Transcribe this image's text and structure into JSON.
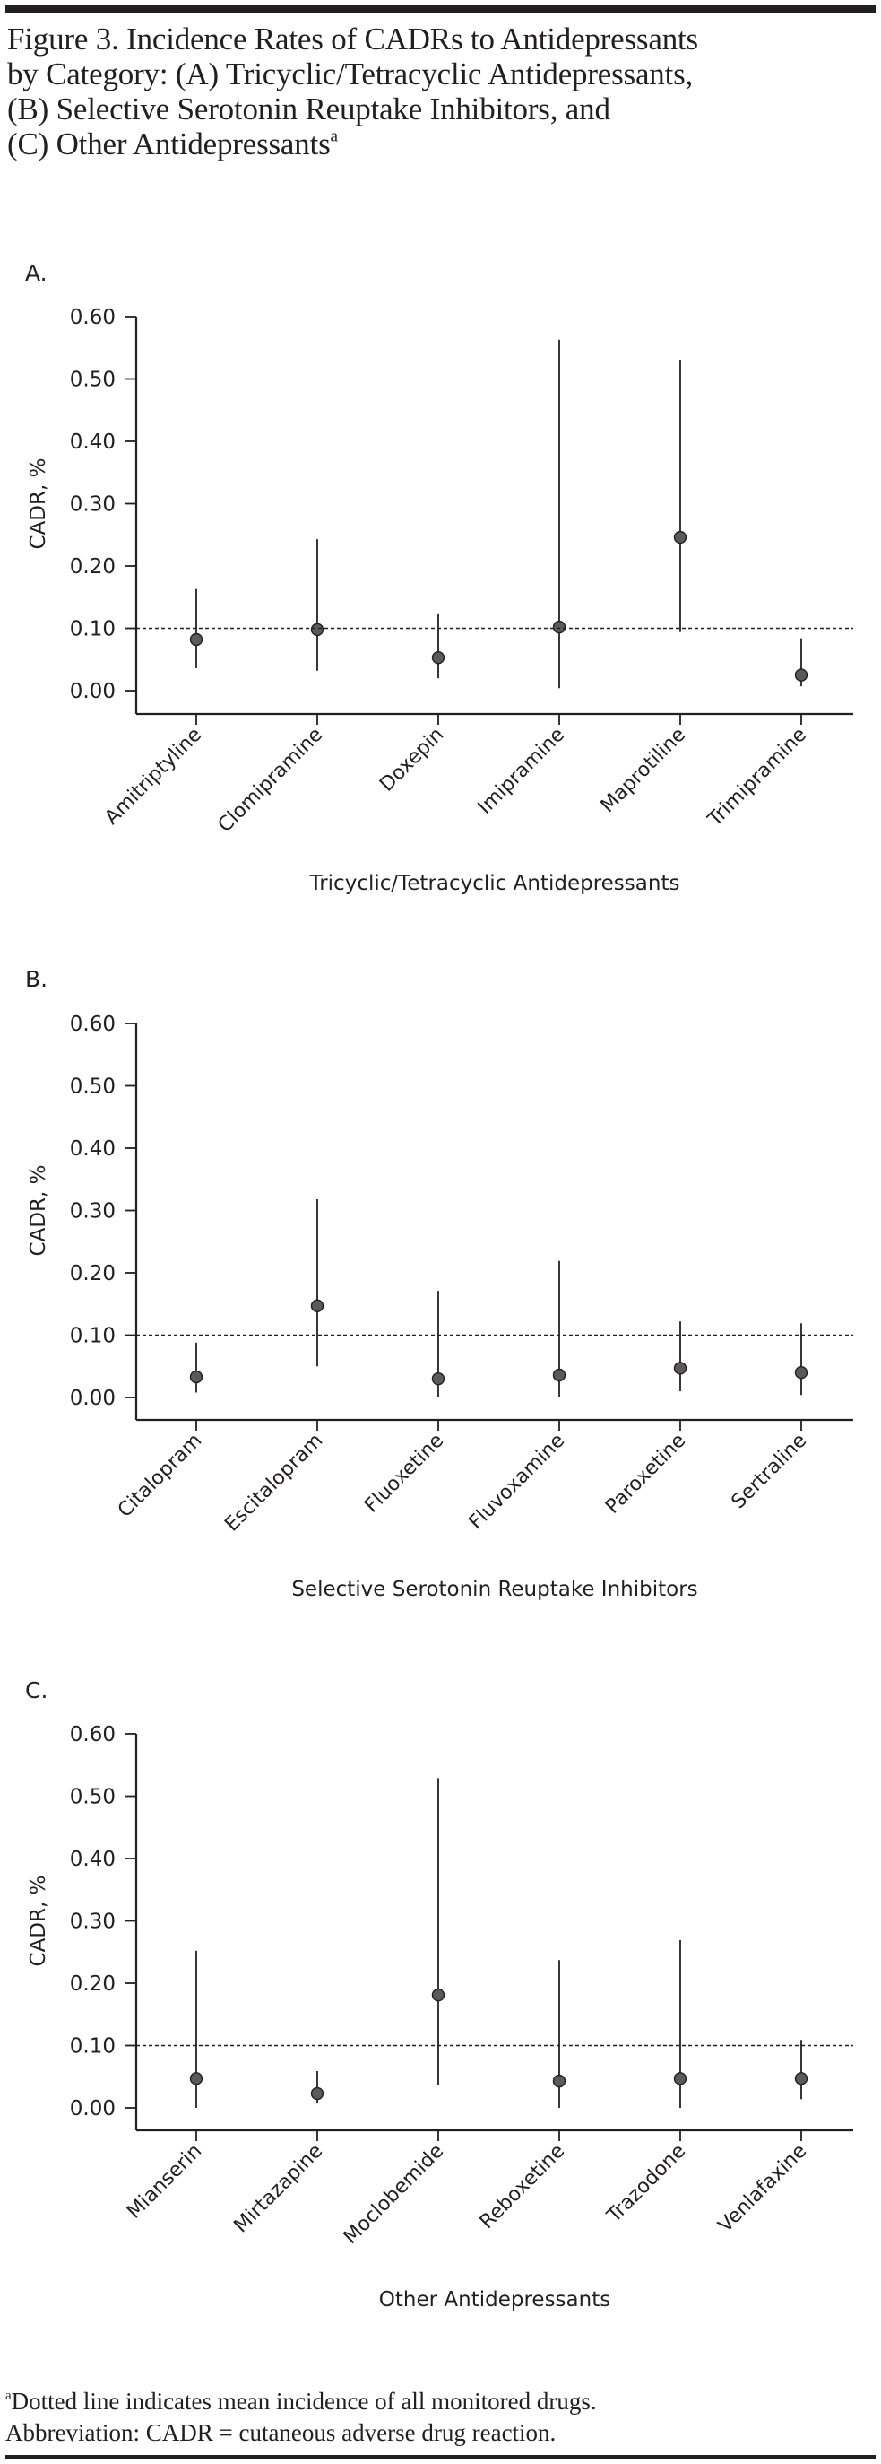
{
  "figure": {
    "title_lines": [
      "Figure 3. Incidence Rates of CADRs to Antidepressants",
      "by Category: (A) Tricyclic/Tetracyclic Antidepressants,",
      "(B) Selective Serotonin Reuptake Inhibitors, and",
      "(C) Other Antidepressants"
    ],
    "title_footnote_marker": "a",
    "footnote_marker": "a",
    "footnote_lines": [
      "Dotted line indicates mean incidence of all monitored drugs.",
      "Abbreviation: CADR = cutaneous adverse drug reaction."
    ],
    "colors": {
      "text": "#231f20",
      "marker_fill": "#5a5a5a",
      "line": "#231f20"
    }
  },
  "chart_data": [
    {
      "type": "scatter",
      "panel_label": "A.",
      "title": "",
      "xlabel": "Tricyclic/Tetracyclic Antidepressants",
      "ylabel": "CADR, %",
      "ylim": [
        0,
        0.6
      ],
      "yticks": [
        "0.00",
        "0.10",
        "0.20",
        "0.30",
        "0.40",
        "0.50",
        "0.60"
      ],
      "grid": false,
      "reference_line": {
        "y": 0.1,
        "style": "dotted",
        "meaning": "mean incidence of all monitored drugs"
      },
      "categories": [
        "Amitriptyline",
        "Clomipramine",
        "Doxepin",
        "Imipramine",
        "Maprotiline",
        "Trimipramine"
      ],
      "values": [
        0.082,
        0.098,
        0.053,
        0.102,
        0.246,
        0.025
      ],
      "ci_lower": [
        0.036,
        0.032,
        0.02,
        0.004,
        0.094,
        0.007
      ],
      "ci_upper": [
        0.163,
        0.243,
        0.124,
        0.563,
        0.531,
        0.084
      ]
    },
    {
      "type": "scatter",
      "panel_label": "B.",
      "title": "",
      "xlabel": "Selective Serotonin Reuptake Inhibitors",
      "ylabel": "CADR, %",
      "ylim": [
        0,
        0.6
      ],
      "yticks": [
        "0.00",
        "0.10",
        "0.20",
        "0.30",
        "0.40",
        "0.50",
        "0.60"
      ],
      "grid": false,
      "reference_line": {
        "y": 0.1,
        "style": "dotted",
        "meaning": "mean incidence of all monitored drugs"
      },
      "categories": [
        "Citalopram",
        "Escitalopram",
        "Fluoxetine",
        "Fluvoxamine",
        "Paroxetine",
        "Sertraline"
      ],
      "values": [
        0.033,
        0.147,
        0.03,
        0.036,
        0.047,
        0.04
      ],
      "ci_lower": [
        0.008,
        0.05,
        0.0,
        0.0,
        0.01,
        0.004
      ],
      "ci_upper": [
        0.088,
        0.318,
        0.171,
        0.219,
        0.122,
        0.119
      ]
    },
    {
      "type": "scatter",
      "panel_label": "C.",
      "title": "",
      "xlabel": "Other Antidepressants",
      "ylabel": "CADR, %",
      "ylim": [
        0,
        0.6
      ],
      "yticks": [
        "0.00",
        "0.10",
        "0.20",
        "0.30",
        "0.40",
        "0.50",
        "0.60"
      ],
      "grid": false,
      "reference_line": {
        "y": 0.1,
        "style": "dotted",
        "meaning": "mean incidence of all monitored drugs"
      },
      "categories": [
        "Mianserin",
        "Mirtazapine",
        "Moclobemide",
        "Reboxetine",
        "Trazodone",
        "Venlafaxine"
      ],
      "values": [
        0.047,
        0.023,
        0.181,
        0.043,
        0.047,
        0.047
      ],
      "ci_lower": [
        0.0,
        0.007,
        0.036,
        0.0,
        0.0,
        0.014
      ],
      "ci_upper": [
        0.252,
        0.059,
        0.529,
        0.237,
        0.269,
        0.109
      ]
    }
  ]
}
